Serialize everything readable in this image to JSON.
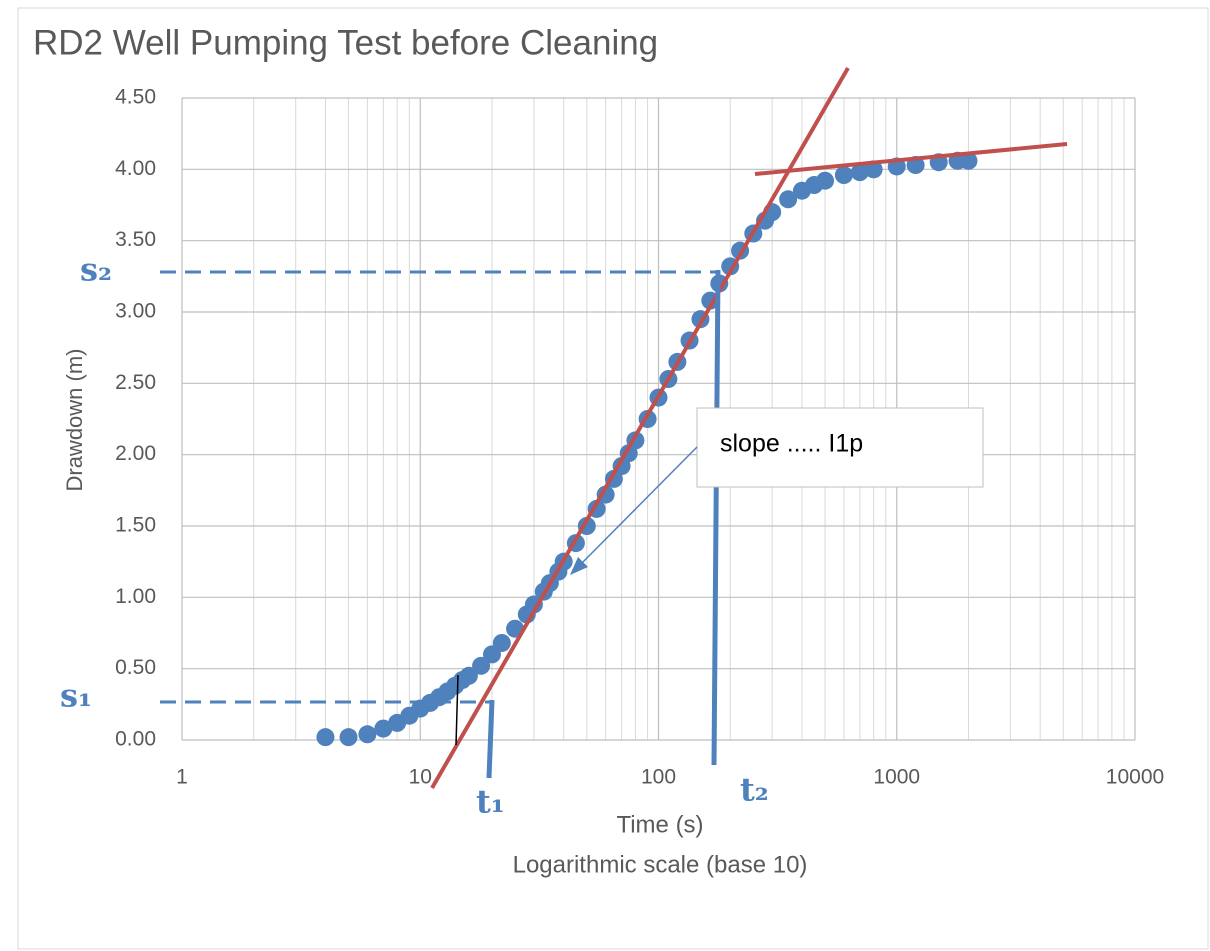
{
  "chart_data": {
    "type": "scatter",
    "title": "RD2 Well Pumping Test before Cleaning",
    "x_label": "Time (s)",
    "x_note": "Logarithmic scale (base 10)",
    "y_label": "Drawdown (m)",
    "x_log": true,
    "grid": true,
    "xlim": [
      1,
      10000
    ],
    "xticks": [
      1,
      10,
      100,
      1000,
      10000
    ],
    "ylim": [
      0,
      4.5
    ],
    "yticks": [
      {
        "value": 0,
        "label": "0.00"
      },
      {
        "value": 0.5,
        "label": "0.50"
      },
      {
        "value": 1,
        "label": "1.00"
      },
      {
        "value": 1.5,
        "label": "1.50"
      },
      {
        "value": 2,
        "label": "2.00"
      },
      {
        "value": 2.5,
        "label": "2.50"
      },
      {
        "value": 3,
        "label": "3.00"
      },
      {
        "value": 3.5,
        "label": "3.50"
      },
      {
        "value": 4,
        "label": "4.00"
      },
      {
        "value": 4.5,
        "label": "4.50"
      }
    ],
    "color": "#4f81bd",
    "x": [
      4,
      5,
      6,
      7,
      8,
      9,
      10,
      11,
      12,
      13,
      14,
      15,
      16,
      18,
      20,
      22,
      25,
      28,
      30,
      33,
      35,
      38,
      40,
      45,
      50,
      55,
      60,
      65,
      70,
      75,
      80,
      90,
      100,
      110,
      120,
      135,
      150,
      165,
      180,
      200,
      220,
      250,
      280,
      300,
      350,
      400,
      450,
      500,
      600,
      700,
      800,
      1000,
      1200,
      1500,
      1800,
      2000
    ],
    "values": [
      0.02,
      0.02,
      0.04,
      0.08,
      0.12,
      0.17,
      0.22,
      0.26,
      0.3,
      0.34,
      0.38,
      0.42,
      0.45,
      0.52,
      0.6,
      0.68,
      0.78,
      0.88,
      0.95,
      1.04,
      1.1,
      1.18,
      1.25,
      1.38,
      1.5,
      1.62,
      1.72,
      1.83,
      1.92,
      2.01,
      2.1,
      2.25,
      2.4,
      2.53,
      2.65,
      2.8,
      2.95,
      3.08,
      3.2,
      3.32,
      3.43,
      3.55,
      3.64,
      3.7,
      3.79,
      3.85,
      3.89,
      3.92,
      3.96,
      3.98,
      4.0,
      4.02,
      4.03,
      4.05,
      4.06,
      4.06
    ],
    "annotations": {
      "slope": "slope ..... I1p",
      "s1": "s₁",
      "s2": "s₂",
      "t1": "t₁",
      "t2": "t₂"
    }
  }
}
